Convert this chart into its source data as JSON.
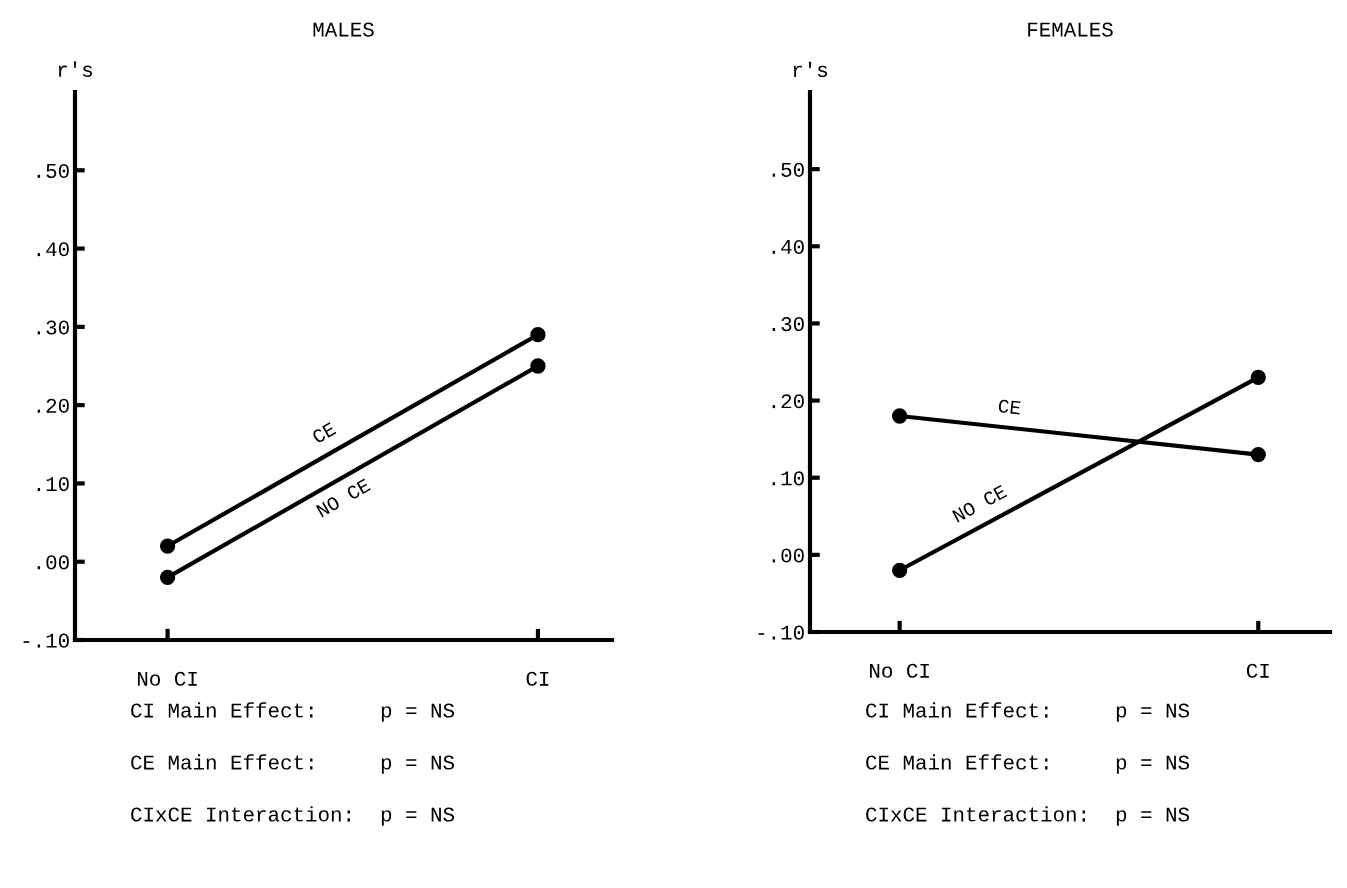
{
  "chart_data": [
    {
      "type": "line",
      "title": "MALES",
      "ylabel": "r's",
      "categories": [
        "No CI",
        "CI"
      ],
      "marker": "circle",
      "line_style": "solid",
      "grid": false,
      "legend": false,
      "series": [
        {
          "name": "CE",
          "color": "#000000",
          "values": [
            0.02,
            0.29
          ]
        },
        {
          "name": "NO CE",
          "color": "#000000",
          "values": [
            -0.02,
            0.25
          ]
        }
      ],
      "ylim": [
        -0.1,
        0.6
      ],
      "yticks": [
        {
          "value": -0.1,
          "label": "-.10"
        },
        {
          "value": 0.0,
          "label": ".00"
        },
        {
          "value": 0.1,
          "label": ".10"
        },
        {
          "value": 0.2,
          "label": ".20"
        },
        {
          "value": 0.3,
          "label": ".30"
        },
        {
          "value": 0.4,
          "label": ".40"
        },
        {
          "value": 0.5,
          "label": ".50"
        }
      ],
      "annotations": [
        "CI Main Effect:     p = NS",
        "CE Main Effect:     p = NS",
        "CIxCE Interaction:  p = NS"
      ]
    },
    {
      "type": "line",
      "title": "FEMALES",
      "ylabel": "r's",
      "categories": [
        "No CI",
        "CI"
      ],
      "marker": "circle",
      "line_style": "solid",
      "grid": false,
      "legend": false,
      "series": [
        {
          "name": "CE",
          "color": "#000000",
          "values": [
            0.18,
            0.13
          ]
        },
        {
          "name": "NO CE",
          "color": "#000000",
          "values": [
            -0.02,
            0.23
          ]
        }
      ],
      "ylim": [
        -0.1,
        0.6
      ],
      "yticks": [
        {
          "value": -0.1,
          "label": "-.10"
        },
        {
          "value": 0.0,
          "label": ".00"
        },
        {
          "value": 0.1,
          "label": ".10"
        },
        {
          "value": 0.2,
          "label": ".20"
        },
        {
          "value": 0.3,
          "label": ".30"
        },
        {
          "value": 0.4,
          "label": ".40"
        },
        {
          "value": 0.5,
          "label": ".50"
        }
      ],
      "annotations": [
        "CI Main Effect:     p = NS",
        "CE Main Effect:     p = NS",
        "CIxCE Interaction:  p = NS"
      ]
    }
  ]
}
